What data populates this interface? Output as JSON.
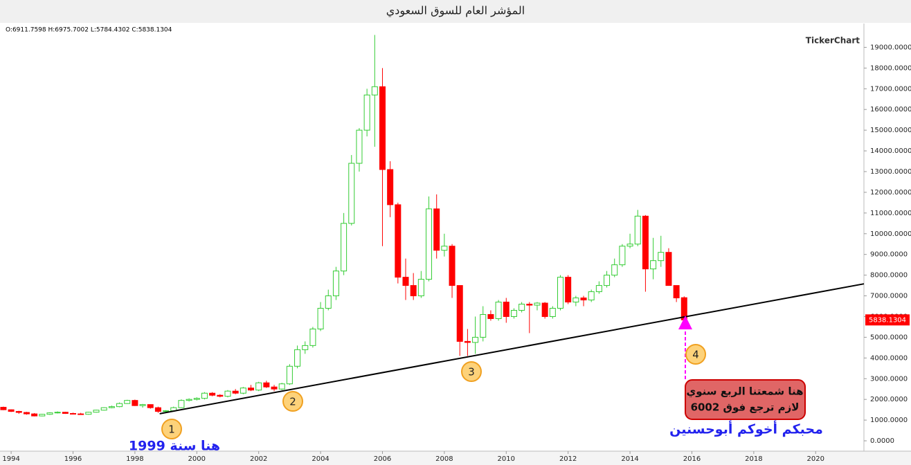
{
  "chart_data": {
    "type": "candlestick",
    "title": "المؤشر العام للسوق السعودي",
    "ohlc_header": "O:6911.7598  H:6975.7002  L:5784.4302  C:5838.1304",
    "watermark": "TickerChart",
    "last_label": "5838.1304",
    "up_color": "#33cc33",
    "down_color": "#ff0000",
    "xlim": [
      1993.64,
      2021.56
    ],
    "xticks": [
      1994,
      1996,
      1998,
      2000,
      2002,
      2004,
      2006,
      2008,
      2010,
      2012,
      2014,
      2016,
      2018,
      2020
    ],
    "ylim": [
      -500,
      20150
    ],
    "yticks": [
      {
        "value": 0,
        "label": "0.0000"
      },
      {
        "value": 1000,
        "label": "1000.0000"
      },
      {
        "value": 2000,
        "label": "2000.0000"
      },
      {
        "value": 3000,
        "label": "3000.0000"
      },
      {
        "value": 4000,
        "label": "4000.0000"
      },
      {
        "value": 5000,
        "label": "5000.0000"
      },
      {
        "value": 6000,
        "label": "6000.0000"
      },
      {
        "value": 7000,
        "label": "7000.0000"
      },
      {
        "value": 8000,
        "label": "8000.0000"
      },
      {
        "value": 9000,
        "label": "9000.0000"
      },
      {
        "value": 10000,
        "label": "10000.0000"
      },
      {
        "value": 11000,
        "label": "11000.0000"
      },
      {
        "value": 12000,
        "label": "12000.0000"
      },
      {
        "value": 13000,
        "label": "13000.0000"
      },
      {
        "value": 14000,
        "label": "14000.0000"
      },
      {
        "value": 15000,
        "label": "15000.0000"
      },
      {
        "value": 16000,
        "label": "16000.0000"
      },
      {
        "value": 17000,
        "label": "17000.0000"
      },
      {
        "value": 18000,
        "label": "18000.0000"
      },
      {
        "value": 19000,
        "label": "19000.0000"
      }
    ],
    "x": [
      1993.75,
      1994,
      1994.25,
      1994.5,
      1994.75,
      1995,
      1995.25,
      1995.5,
      1995.75,
      1996,
      1996.25,
      1996.5,
      1996.75,
      1997,
      1997.25,
      1997.5,
      1997.75,
      1998,
      1998.25,
      1998.5,
      1998.75,
      1999,
      1999.25,
      1999.5,
      1999.75,
      2000,
      2000.25,
      2000.5,
      2000.75,
      2001,
      2001.25,
      2001.5,
      2001.75,
      2002,
      2002.25,
      2002.5,
      2002.75,
      2003,
      2003.25,
      2003.5,
      2003.75,
      2004,
      2004.25,
      2004.5,
      2004.75,
      2005,
      2005.25,
      2005.5,
      2005.75,
      2006,
      2006.25,
      2006.5,
      2006.75,
      2007,
      2007.25,
      2007.5,
      2007.75,
      2008,
      2008.25,
      2008.5,
      2008.75,
      2009,
      2009.25,
      2009.5,
      2009.75,
      2010,
      2010.25,
      2010.5,
      2010.75,
      2011,
      2011.25,
      2011.5,
      2011.75,
      2012,
      2012.25,
      2012.5,
      2012.75,
      2013,
      2013.25,
      2013.5,
      2013.75,
      2014,
      2014.25,
      2014.5,
      2014.75,
      2015,
      2015.25,
      2015.5,
      2015.75
    ],
    "open": [
      1620,
      1500,
      1420,
      1370,
      1300,
      1200,
      1280,
      1350,
      1380,
      1320,
      1300,
      1280,
      1380,
      1480,
      1600,
      1650,
      1800,
      1950,
      1700,
      1750,
      1600,
      1420,
      1450,
      1600,
      1950,
      2000,
      2050,
      2300,
      2200,
      2150,
      2400,
      2300,
      2550,
      2450,
      2800,
      2600,
      2500,
      2750,
      3600,
      4400,
      4600,
      5400,
      6400,
      7000,
      8200,
      10500,
      13400,
      15000,
      16700,
      17100,
      13100,
      11400,
      7900,
      7500,
      7000,
      7800,
      11200,
      9200,
      9400,
      7500,
      4800,
      4750,
      5000,
      6100,
      5900,
      6700,
      6000,
      6300,
      6600,
      6550,
      6650,
      6000,
      6400,
      7900,
      6700,
      6900,
      6800,
      7200,
      7500,
      8000,
      8500,
      9400,
      9500,
      10850,
      8300,
      8700,
      9100,
      7500,
      6911.7598
    ],
    "high": [
      1650,
      1520,
      1450,
      1400,
      1340,
      1300,
      1380,
      1420,
      1400,
      1360,
      1350,
      1400,
      1500,
      1620,
      1700,
      1850,
      1980,
      1990,
      1780,
      1760,
      1650,
      1480,
      1650,
      2000,
      2050,
      2100,
      2350,
      2350,
      2250,
      2450,
      2500,
      2600,
      2700,
      2850,
      2900,
      2700,
      2800,
      3700,
      4600,
      4800,
      5500,
      6700,
      7300,
      8400,
      11000,
      13800,
      15100,
      17000,
      19600,
      18000,
      13500,
      11500,
      8800,
      8100,
      8200,
      11800,
      11900,
      10000,
      9500,
      7500,
      5400,
      6000,
      6500,
      6300,
      6800,
      6900,
      6400,
      6700,
      6700,
      6700,
      6700,
      6500,
      8000,
      8000,
      7000,
      7000,
      7300,
      7700,
      8200,
      8800,
      9500,
      10000,
      11150,
      10900,
      9800,
      9900,
      9300,
      7500,
      6975.7002
    ],
    "low": [
      1480,
      1390,
      1300,
      1260,
      1180,
      1180,
      1250,
      1320,
      1300,
      1270,
      1260,
      1260,
      1360,
      1460,
      1570,
      1620,
      1780,
      1680,
      1600,
      1550,
      1350,
      1380,
      1430,
      1580,
      1900,
      1950,
      2000,
      2150,
      2100,
      2100,
      2250,
      2250,
      2400,
      2400,
      2550,
      2400,
      2450,
      2700,
      3500,
      4200,
      4500,
      5300,
      6300,
      6800,
      8000,
      10400,
      13000,
      14700,
      14200,
      9400,
      10800,
      7600,
      6800,
      6800,
      6900,
      7700,
      8800,
      8900,
      6900,
      4100,
      4100,
      4200,
      4800,
      5800,
      5800,
      5700,
      5900,
      6200,
      5200,
      6300,
      5900,
      5900,
      6300,
      6600,
      6500,
      6500,
      6700,
      7100,
      7400,
      7900,
      8400,
      9300,
      9400,
      7200,
      7800,
      8400,
      7500,
      6700,
      5784.4302
    ],
    "close": [
      1500,
      1420,
      1370,
      1300,
      1200,
      1280,
      1350,
      1380,
      1320,
      1300,
      1280,
      1380,
      1480,
      1600,
      1650,
      1800,
      1950,
      1700,
      1750,
      1600,
      1420,
      1450,
      1600,
      1950,
      2000,
      2050,
      2300,
      2200,
      2150,
      2400,
      2300,
      2550,
      2450,
      2800,
      2600,
      2500,
      2750,
      3600,
      4400,
      4600,
      5400,
      6400,
      7000,
      8200,
      10500,
      13400,
      15000,
      16700,
      17100,
      13100,
      11400,
      7900,
      7500,
      7000,
      7800,
      11200,
      9200,
      9400,
      7500,
      4800,
      4750,
      5000,
      6100,
      5900,
      6700,
      6000,
      6300,
      6600,
      6550,
      6650,
      6000,
      6400,
      7900,
      6700,
      6900,
      6800,
      7200,
      7500,
      8000,
      8500,
      9400,
      9500,
      10850,
      8300,
      8700,
      9100,
      7500,
      6900,
      5838.1304
    ],
    "trendline": {
      "x": [
        1998.8,
        2021.56
      ],
      "y": [
        1310,
        7580
      ]
    },
    "annotations": {
      "markers": [
        "1",
        "2",
        "3",
        "4"
      ],
      "year_note": "هنا سنة 1999",
      "signature": "محبكم أخوكم أبوحسنين",
      "box_line1": "هنا شمعتنا الربع سنوي",
      "box_line2": "لازم ترجع فوق 6002"
    }
  }
}
